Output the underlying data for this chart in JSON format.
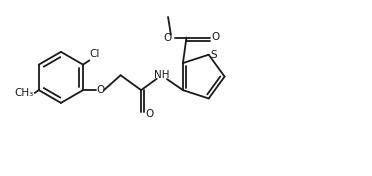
{
  "bg_color": "#ffffff",
  "line_color": "#1a1a1a",
  "line_width": 1.3,
  "font_size": 7.5,
  "figsize": [
    3.72,
    1.76
  ],
  "dpi": 100,
  "xlim": [
    0,
    10.5
  ],
  "ylim": [
    0.5,
    5.0
  ]
}
